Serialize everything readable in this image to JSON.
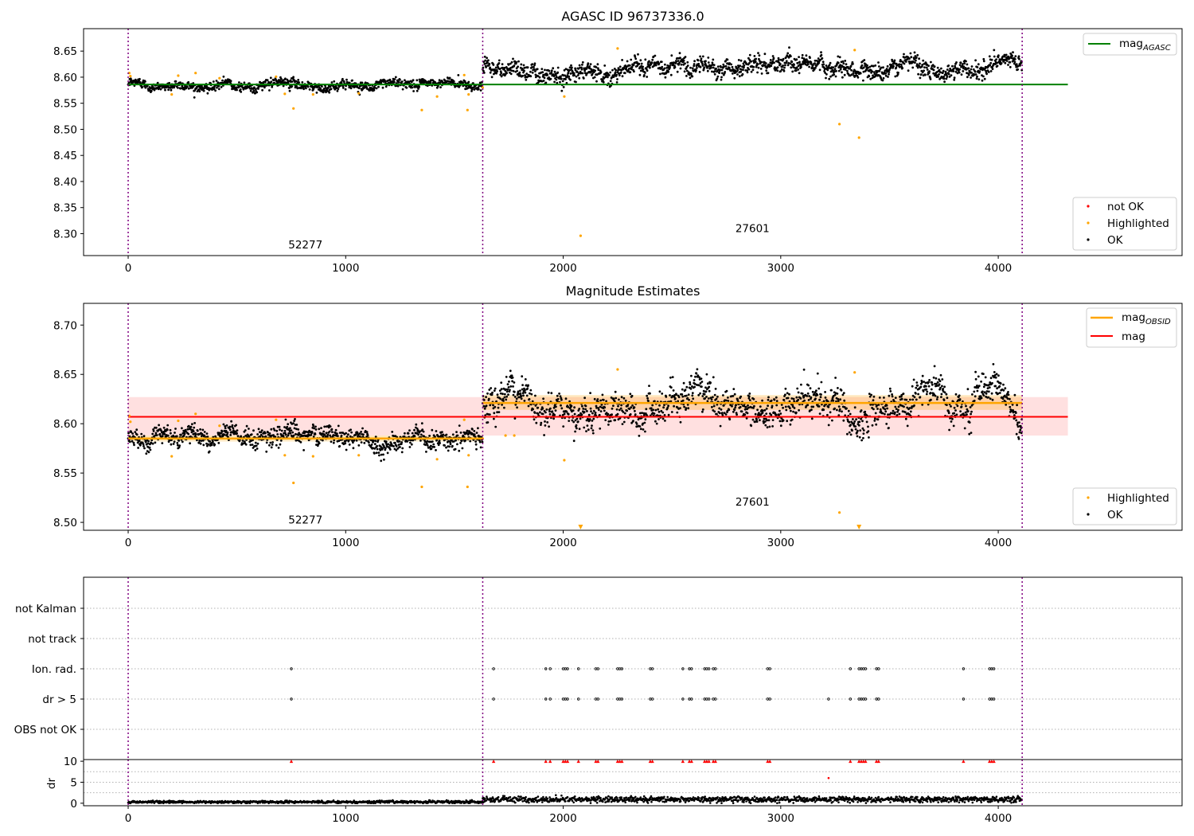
{
  "chart_data": [
    {
      "type": "scatter",
      "panel": "agasc",
      "title": "AGASC ID 96737336.0",
      "xlim": [
        -205,
        4845
      ],
      "ylim": [
        8.258,
        8.693
      ],
      "xticks": [
        0,
        1000,
        2000,
        3000,
        4000
      ],
      "yticks": [
        8.3,
        8.35,
        8.4,
        8.45,
        8.5,
        8.55,
        8.6,
        8.65
      ],
      "obs_boundaries": [
        0,
        1630,
        4110
      ],
      "obs_labels": [
        {
          "text": "52277",
          "x": 815,
          "y": 8.272
        },
        {
          "text": "27601",
          "x": 2870,
          "y": 8.303
        }
      ],
      "mag_agasc": {
        "value": 8.586,
        "x_range": [
          0,
          4320
        ],
        "color": "#008000"
      },
      "ok_segments": [
        {
          "x_start": 0,
          "x_end": 1630,
          "mean": 8.586,
          "scatter": 0.006
        },
        {
          "x_start": 1630,
          "x_end": 4110,
          "mean": 8.621,
          "scatter": 0.011
        }
      ],
      "highlighted_points": [
        [
          5,
          8.608
        ],
        [
          10,
          8.602
        ],
        [
          200,
          8.567
        ],
        [
          230,
          8.603
        ],
        [
          310,
          8.608
        ],
        [
          420,
          8.598
        ],
        [
          680,
          8.601
        ],
        [
          720,
          8.568
        ],
        [
          760,
          8.54
        ],
        [
          850,
          8.567
        ],
        [
          1060,
          8.569
        ],
        [
          1350,
          8.537
        ],
        [
          1420,
          8.563
        ],
        [
          1545,
          8.604
        ],
        [
          1560,
          8.537
        ],
        [
          1565,
          8.567
        ],
        [
          1630,
          8.58
        ],
        [
          2005,
          8.563
        ],
        [
          2080,
          8.296
        ],
        [
          2250,
          8.655
        ],
        [
          3270,
          8.51
        ],
        [
          3340,
          8.652
        ],
        [
          3360,
          8.484
        ]
      ],
      "legend": {
        "lines": [
          "mag_AGASC"
        ],
        "points": [
          "not OK",
          "Highlighted",
          "OK"
        ]
      }
    },
    {
      "type": "scatter",
      "panel": "estimates",
      "title": "Magnitude Estimates",
      "xlim": [
        -205,
        4845
      ],
      "ylim": [
        8.492,
        8.722
      ],
      "xticks": [
        0,
        1000,
        2000,
        3000,
        4000
      ],
      "yticks": [
        8.5,
        8.55,
        8.6,
        8.65,
        8.7
      ],
      "obs_boundaries": [
        0,
        1630,
        4110
      ],
      "obs_labels": [
        {
          "text": "52277",
          "x": 815,
          "y": 8.499
        },
        {
          "text": "27601",
          "x": 2870,
          "y": 8.517
        }
      ],
      "mag": {
        "value": 8.607,
        "band": [
          8.588,
          8.627
        ],
        "x_range": [
          0,
          4320
        ],
        "color": "#ff0000"
      },
      "mag_obsid": [
        {
          "x_start": 0,
          "x_end": 1630,
          "value": 8.585,
          "band": [
            8.582,
            8.588
          ]
        },
        {
          "x_start": 1630,
          "x_end": 4110,
          "value": 8.621,
          "band": [
            8.614,
            8.629
          ]
        }
      ],
      "ok_segments": [
        {
          "x_start": 0,
          "x_end": 1630,
          "mean": 8.586,
          "scatter": 0.006
        },
        {
          "x_start": 1630,
          "x_end": 4110,
          "mean": 8.621,
          "scatter": 0.011
        }
      ],
      "highlighted_points": [
        [
          5,
          8.608
        ],
        [
          10,
          8.602
        ],
        [
          200,
          8.567
        ],
        [
          230,
          8.603
        ],
        [
          310,
          8.61
        ],
        [
          420,
          8.598
        ],
        [
          680,
          8.604
        ],
        [
          720,
          8.568
        ],
        [
          760,
          8.54
        ],
        [
          850,
          8.567
        ],
        [
          1060,
          8.568
        ],
        [
          1350,
          8.536
        ],
        [
          1420,
          8.564
        ],
        [
          1545,
          8.604
        ],
        [
          1560,
          8.536
        ],
        [
          1565,
          8.568
        ],
        [
          1630,
          8.585
        ],
        [
          1735,
          8.588
        ],
        [
          1775,
          8.588
        ],
        [
          2005,
          8.563
        ],
        [
          2250,
          8.655
        ],
        [
          3270,
          8.51
        ],
        [
          3340,
          8.652
        ]
      ],
      "off_scale_markers": [
        2080,
        3360
      ],
      "legend": {
        "lines": [
          "mag_OBSID",
          "mag"
        ],
        "points": [
          "Highlighted",
          "OK"
        ]
      }
    },
    {
      "type": "scatter",
      "panel": "flags",
      "xlim": [
        -205,
        4845
      ],
      "categories": [
        "not Kalman",
        "not track",
        "Ion. rad.",
        "dr > 5",
        "OBS not OK"
      ],
      "flag_points": {
        "Ion. rad.": [
          750,
          1680,
          1920,
          1940,
          2000,
          2010,
          2020,
          2070,
          2150,
          2160,
          2250,
          2260,
          2270,
          2400,
          2410,
          2550,
          2580,
          2590,
          2650,
          2660,
          2670,
          2690,
          2700,
          2940,
          2950,
          3320,
          3360,
          3370,
          3380,
          3390,
          3440,
          3450,
          3840,
          3960,
          3970,
          3980
        ],
        "dr > 5": [
          750,
          1680,
          1920,
          1940,
          2000,
          2010,
          2020,
          2070,
          2150,
          2160,
          2250,
          2260,
          2270,
          2400,
          2410,
          2550,
          2580,
          2590,
          2650,
          2660,
          2670,
          2690,
          2700,
          2940,
          2950,
          3220,
          3320,
          3360,
          3370,
          3380,
          3390,
          3440,
          3450,
          3840,
          3960,
          3970,
          3980
        ]
      }
    },
    {
      "type": "scatter",
      "panel": "dr",
      "ylabel": "dr",
      "xlim": [
        -205,
        4845
      ],
      "ylim": [
        -0.6,
        10.4
      ],
      "xticks": [
        0,
        1000,
        2000,
        3000,
        4000
      ],
      "yticks": [
        0,
        5,
        10
      ],
      "dr_segments": [
        {
          "x_start": 0,
          "x_end": 1630,
          "mean": 0.3,
          "scatter": 0.15
        },
        {
          "x_start": 1630,
          "x_end": 4110,
          "mean": 0.9,
          "scatter": 0.35
        }
      ],
      "clipped_points_red": [
        750,
        1680,
        1920,
        1940,
        2000,
        2010,
        2020,
        2070,
        2150,
        2160,
        2250,
        2260,
        2270,
        2400,
        2410,
        2550,
        2580,
        2590,
        2650,
        2660,
        2670,
        2690,
        2700,
        2940,
        2950,
        3320,
        3360,
        3370,
        3380,
        3390,
        3440,
        3450,
        3840,
        3960,
        3970,
        3980
      ],
      "red_points": [
        [
          3220,
          6.0
        ]
      ]
    }
  ]
}
